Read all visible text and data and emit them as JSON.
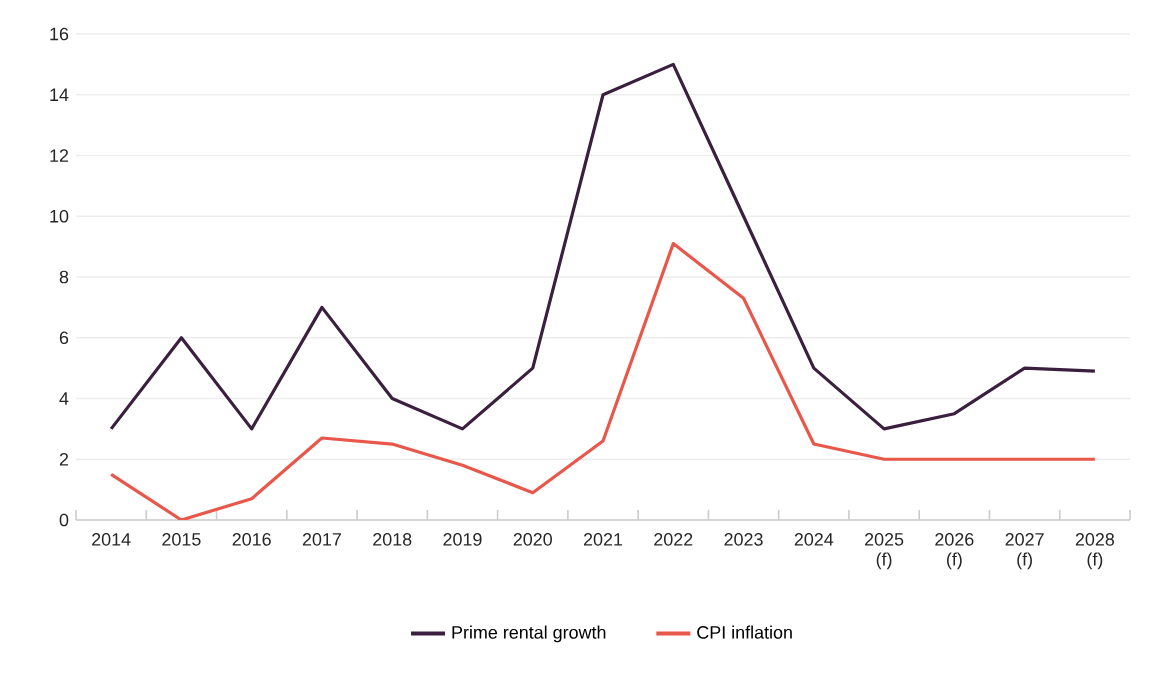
{
  "chart_data": {
    "type": "line",
    "categories": [
      "2014",
      "2015",
      "2016",
      "2017",
      "2018",
      "2019",
      "2020",
      "2021",
      "2022",
      "2023",
      "2024",
      "2025 (f)",
      "2026 (f)",
      "2027 (f)",
      "2028 (f)"
    ],
    "series": [
      {
        "name": "Prime rental growth",
        "color": "#3b1f3e",
        "values": [
          3,
          6,
          3,
          7,
          4,
          3,
          5,
          14,
          15,
          10,
          5,
          3,
          3.5,
          5,
          4.9
        ]
      },
      {
        "name": "CPI inflation",
        "color": "#e8574a",
        "values": [
          1.5,
          0,
          0.7,
          2.7,
          2.5,
          1.8,
          0.9,
          2.6,
          9.1,
          7.3,
          2.5,
          2,
          2,
          2,
          2
        ]
      }
    ],
    "ylim": [
      0,
      16
    ],
    "yticks": [
      0,
      2,
      4,
      6,
      8,
      10,
      12,
      14,
      16
    ],
    "grid": "y",
    "legend": "bottom"
  }
}
